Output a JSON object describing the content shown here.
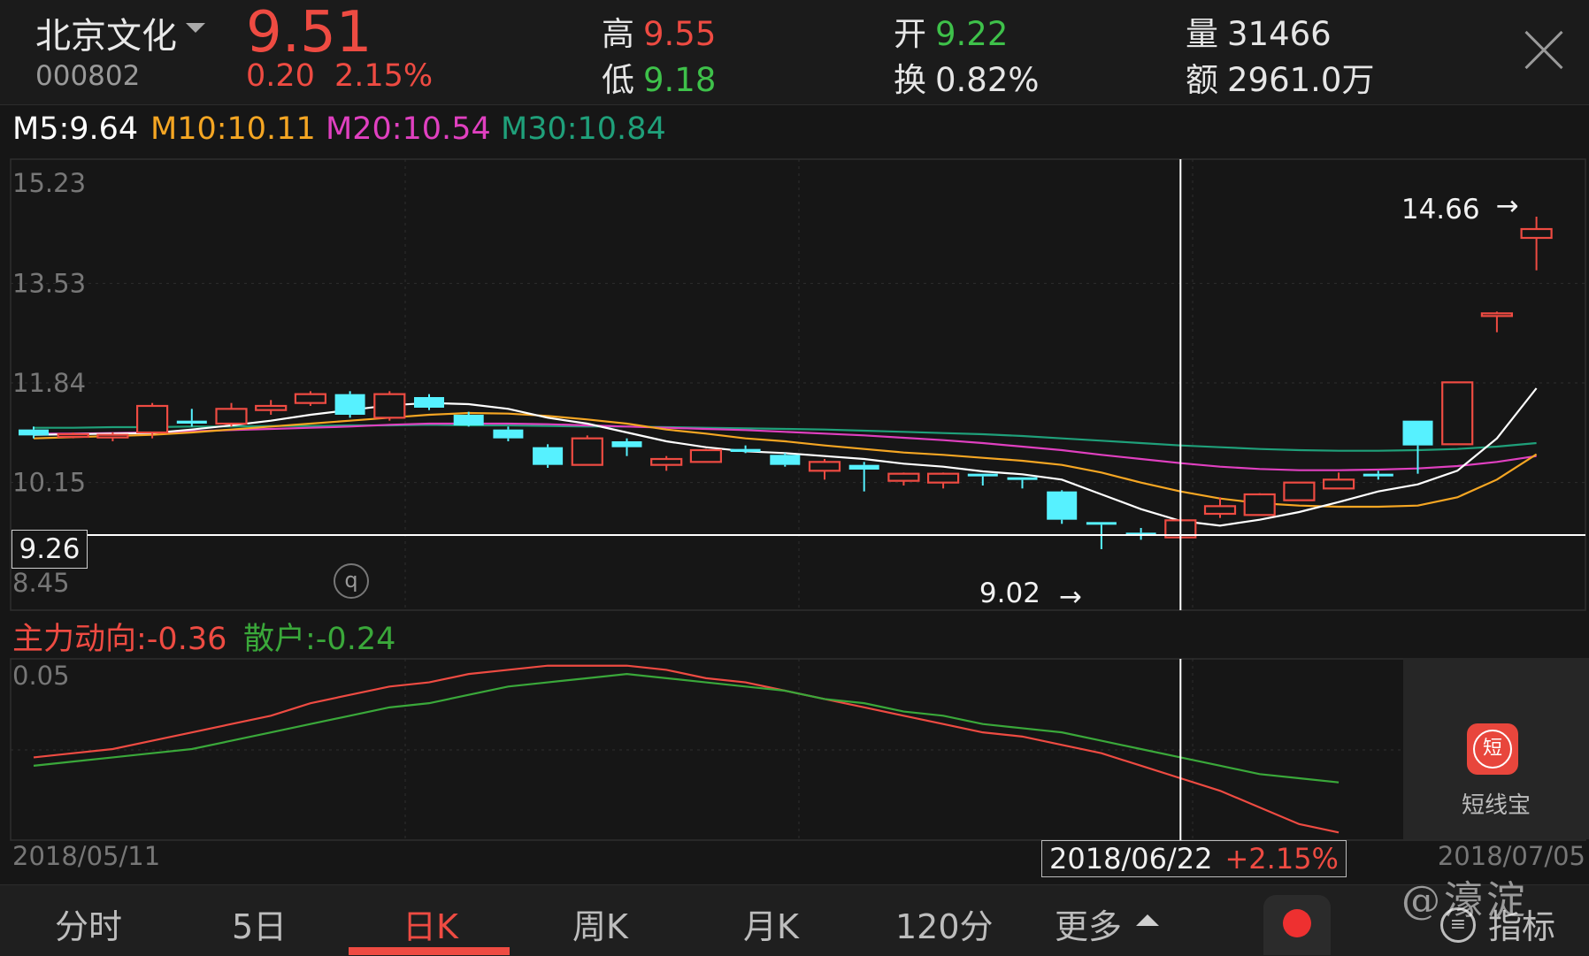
{
  "header": {
    "stock_name": "北京文化",
    "stock_code": "000802",
    "price": "9.51",
    "change": "0.20",
    "change_pct": "2.15%",
    "high_label": "高",
    "high": "9.55",
    "low_label": "低",
    "low": "9.18",
    "open_label": "开",
    "open": "9.22",
    "turnover_label": "换",
    "turnover": "0.82%",
    "volume_label": "量",
    "volume": "31466",
    "amount_label": "额",
    "amount": "2961.0万"
  },
  "ma_legend": {
    "m5": "M5:9.64",
    "m10": "M10:10.11",
    "m20": "M20:10.54",
    "m30": "M30:10.84"
  },
  "indicator_legend": {
    "main": "主力动向:-0.36",
    "retail": "散户:-0.24"
  },
  "crosshair": {
    "price_label": "9.26",
    "date": "2018/06/22",
    "pct": "+2.15%"
  },
  "annotations": {
    "max_label": "14.66",
    "min_label": "9.02",
    "arrow": "→",
    "q_badge": "q"
  },
  "dates": {
    "start": "2018/05/11",
    "end": "2018/07/05"
  },
  "side_tool": {
    "label": "短线宝",
    "icon_glyph": "短"
  },
  "tabs": [
    "分时",
    "5日",
    "日K",
    "周K",
    "月K",
    "120分",
    "更多"
  ],
  "active_tab": "日K",
  "indicator_tab": "指标",
  "watermark": "@濠淀",
  "colors": {
    "up": "#ee4b42",
    "down": "#56f1ff",
    "ma5": "#ffffff",
    "ma10": "#f5a623",
    "ma20": "#e040c0",
    "ma30": "#1fa07a",
    "ind_main": "#ee4b42",
    "ind_retail": "#3aa83a",
    "grid": "#2e2e2e"
  },
  "chart_data": [
    {
      "type": "candlestick",
      "title": "",
      "y_ticks": [
        "15.23",
        "13.53",
        "11.84",
        "10.15",
        "8.45"
      ],
      "ylim": [
        8.45,
        15.23
      ],
      "candles": [
        {
          "o": 11.05,
          "c": 10.95,
          "h": 11.1,
          "l": 10.9
        },
        {
          "o": 10.95,
          "c": 10.97,
          "h": 11.0,
          "l": 10.9
        },
        {
          "o": 10.92,
          "c": 10.96,
          "h": 11.0,
          "l": 10.85
        },
        {
          "o": 11.0,
          "c": 11.45,
          "h": 11.5,
          "l": 10.9
        },
        {
          "o": 11.2,
          "c": 11.15,
          "h": 11.4,
          "l": 11.1
        },
        {
          "o": 11.15,
          "c": 11.4,
          "h": 11.5,
          "l": 11.1
        },
        {
          "o": 11.38,
          "c": 11.45,
          "h": 11.55,
          "l": 11.3
        },
        {
          "o": 11.5,
          "c": 11.65,
          "h": 11.7,
          "l": 11.45
        },
        {
          "o": 11.65,
          "c": 11.3,
          "h": 11.7,
          "l": 11.25
        },
        {
          "o": 11.25,
          "c": 11.65,
          "h": 11.7,
          "l": 11.2
        },
        {
          "o": 11.6,
          "c": 11.42,
          "h": 11.65,
          "l": 11.38
        },
        {
          "o": 11.3,
          "c": 11.12,
          "h": 11.35,
          "l": 11.1
        },
        {
          "o": 11.05,
          "c": 10.9,
          "h": 11.1,
          "l": 10.85
        },
        {
          "o": 10.75,
          "c": 10.45,
          "h": 10.8,
          "l": 10.4
        },
        {
          "o": 10.45,
          "c": 10.9,
          "h": 10.95,
          "l": 10.45
        },
        {
          "o": 10.85,
          "c": 10.75,
          "h": 10.9,
          "l": 10.6
        },
        {
          "o": 10.45,
          "c": 10.55,
          "h": 10.6,
          "l": 10.35
        },
        {
          "o": 10.5,
          "c": 10.7,
          "h": 10.72,
          "l": 10.5
        },
        {
          "o": 10.72,
          "c": 10.67,
          "h": 10.78,
          "l": 10.65
        },
        {
          "o": 10.62,
          "c": 10.45,
          "h": 10.65,
          "l": 10.42
        },
        {
          "o": 10.35,
          "c": 10.5,
          "h": 10.55,
          "l": 10.2
        },
        {
          "o": 10.45,
          "c": 10.37,
          "h": 10.5,
          "l": 10.0
        },
        {
          "o": 10.18,
          "c": 10.3,
          "h": 10.32,
          "l": 10.1
        },
        {
          "o": 10.15,
          "c": 10.3,
          "h": 10.32,
          "l": 10.05
        },
        {
          "o": 10.3,
          "c": 10.28,
          "h": 10.3,
          "l": 10.1
        },
        {
          "o": 10.24,
          "c": 10.2,
          "h": 10.24,
          "l": 10.05
        },
        {
          "o": 10.0,
          "c": 9.52,
          "h": 10.02,
          "l": 9.45
        },
        {
          "o": 9.48,
          "c": 9.45,
          "h": 9.48,
          "l": 9.02
        },
        {
          "o": 9.3,
          "c": 9.27,
          "h": 9.38,
          "l": 9.18
        },
        {
          "o": 9.22,
          "c": 9.51,
          "h": 9.55,
          "l": 9.18
        },
        {
          "o": 9.62,
          "c": 9.75,
          "h": 9.9,
          "l": 9.55
        },
        {
          "o": 9.6,
          "c": 9.95,
          "h": 9.97,
          "l": 9.6
        },
        {
          "o": 9.85,
          "c": 10.15,
          "h": 10.15,
          "l": 9.85
        },
        {
          "o": 10.05,
          "c": 10.2,
          "h": 10.32,
          "l": 10.05
        },
        {
          "o": 10.3,
          "c": 10.27,
          "h": 10.35,
          "l": 10.2
        },
        {
          "o": 11.2,
          "c": 10.78,
          "h": 11.2,
          "l": 10.3
        },
        {
          "o": 10.8,
          "c": 11.85,
          "h": 11.85,
          "l": 10.8
        },
        {
          "o": 13.0,
          "c": 13.02,
          "h": 13.05,
          "l": 12.7
        },
        {
          "o": 14.3,
          "c": 14.45,
          "h": 14.66,
          "l": 13.75
        }
      ],
      "ma5": [
        10.96,
        10.97,
        10.98,
        10.99,
        11.05,
        11.12,
        11.2,
        11.3,
        11.38,
        11.46,
        11.5,
        11.48,
        11.4,
        11.25,
        11.15,
        11.0,
        10.85,
        10.75,
        10.68,
        10.65,
        10.6,
        10.55,
        10.47,
        10.42,
        10.34,
        10.29,
        10.2,
        9.95,
        9.7,
        9.5,
        9.42,
        9.52,
        9.65,
        9.82,
        10.0,
        10.12,
        10.35,
        10.9,
        11.75
      ],
      "ma10": [
        10.9,
        10.92,
        10.94,
        10.96,
        11.0,
        11.05,
        11.1,
        11.15,
        11.2,
        11.25,
        11.3,
        11.33,
        11.32,
        11.28,
        11.22,
        11.15,
        11.05,
        10.98,
        10.9,
        10.85,
        10.78,
        10.72,
        10.66,
        10.62,
        10.57,
        10.52,
        10.45,
        10.32,
        10.15,
        10.0,
        9.88,
        9.8,
        9.76,
        9.74,
        9.74,
        9.76,
        9.9,
        10.2,
        10.63
      ],
      "ma20": [
        10.98,
        10.98,
        10.99,
        11.0,
        11.02,
        11.04,
        11.06,
        11.08,
        11.1,
        11.13,
        11.15,
        11.15,
        11.15,
        11.14,
        11.12,
        11.1,
        11.08,
        11.06,
        11.04,
        11.01,
        10.98,
        10.95,
        10.91,
        10.87,
        10.82,
        10.76,
        10.7,
        10.62,
        10.55,
        10.48,
        10.42,
        10.38,
        10.36,
        10.36,
        10.37,
        10.39,
        10.43,
        10.5,
        10.6
      ],
      "ma30": [
        11.08,
        11.08,
        11.09,
        11.09,
        11.1,
        11.1,
        11.11,
        11.11,
        11.12,
        11.12,
        11.13,
        11.12,
        11.12,
        11.11,
        11.1,
        11.1,
        11.09,
        11.08,
        11.07,
        11.06,
        11.05,
        11.03,
        11.01,
        10.99,
        10.97,
        10.94,
        10.9,
        10.86,
        10.82,
        10.78,
        10.75,
        10.72,
        10.7,
        10.69,
        10.69,
        10.7,
        10.72,
        10.76,
        10.82
      ],
      "max_label": "14.66",
      "min_label": "9.02",
      "crosshair_price": 9.26,
      "crosshair_index": 29
    },
    {
      "type": "line",
      "title": "",
      "y_ticks": [
        "0.05"
      ],
      "ylim": [
        -0.37,
        0.05
      ],
      "series": [
        {
          "name": "主力动向",
          "values": [
            -0.18,
            -0.17,
            -0.16,
            -0.14,
            -0.12,
            -0.1,
            -0.08,
            -0.05,
            -0.03,
            -0.01,
            0.0,
            0.02,
            0.03,
            0.04,
            0.04,
            0.04,
            0.03,
            0.01,
            0.0,
            -0.02,
            -0.04,
            -0.06,
            -0.08,
            -0.1,
            -0.12,
            -0.13,
            -0.15,
            -0.17,
            -0.2,
            -0.23,
            -0.26,
            -0.3,
            -0.34,
            -0.36
          ]
        },
        {
          "name": "散户",
          "values": [
            -0.2,
            -0.19,
            -0.18,
            -0.17,
            -0.16,
            -0.14,
            -0.12,
            -0.1,
            -0.08,
            -0.06,
            -0.05,
            -0.03,
            -0.01,
            0.0,
            0.01,
            0.02,
            0.01,
            0.0,
            -0.01,
            -0.02,
            -0.04,
            -0.05,
            -0.07,
            -0.08,
            -0.1,
            -0.11,
            -0.12,
            -0.14,
            -0.16,
            -0.18,
            -0.2,
            -0.22,
            -0.23,
            -0.24
          ]
        }
      ],
      "x_ticks": [
        "2018/05/11",
        "2018/07/05"
      ]
    }
  ]
}
